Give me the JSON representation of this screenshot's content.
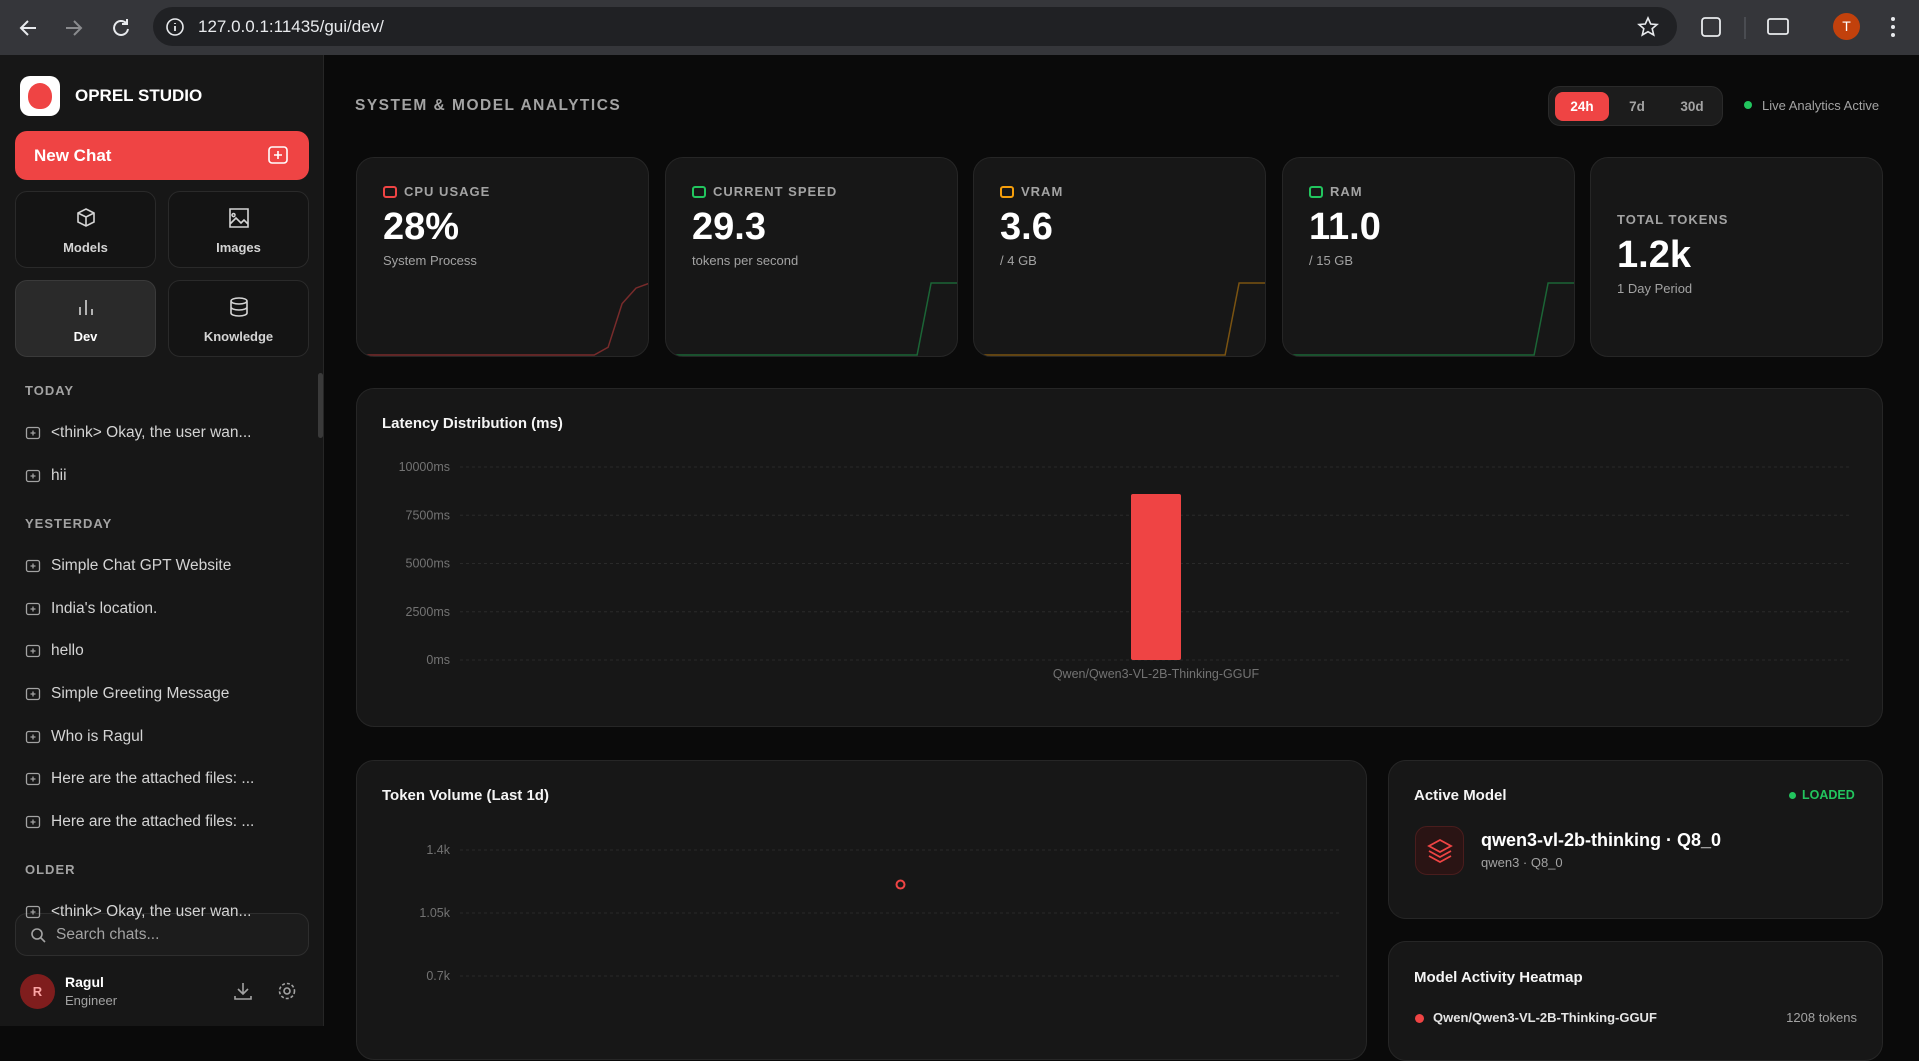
{
  "browser": {
    "url": "127.0.0.1:11435/gui/dev/",
    "avatar": "T"
  },
  "sidebar": {
    "brand": "OPREL STUDIO",
    "new_chat": "New Chat",
    "nav": [
      {
        "label": "Models"
      },
      {
        "label": "Images"
      },
      {
        "label": "Dev"
      },
      {
        "label": "Knowledge"
      }
    ],
    "active_nav": 2,
    "sections": [
      {
        "title": "TODAY",
        "chats": [
          "<think> Okay, the user wan...",
          "hii"
        ]
      },
      {
        "title": "YESTERDAY",
        "chats": [
          "Simple Chat GPT Website",
          "India's location.",
          "hello",
          "Simple Greeting Message",
          "Who is Ragul",
          "Here are the attached files: ...",
          "Here are the attached files: ..."
        ]
      },
      {
        "title": "OLDER",
        "chats": [
          "<think> Okay, the user wan..."
        ]
      }
    ],
    "search_placeholder": "Search chats...",
    "user": {
      "initial": "R",
      "name": "Ragul",
      "role": "Engineer"
    }
  },
  "header": {
    "title": "SYSTEM & MODEL ANALYTICS",
    "ranges": [
      "24h",
      "7d",
      "30d"
    ],
    "active_range": 0,
    "status": "Live Analytics Active"
  },
  "stats": [
    {
      "label": "CPU USAGE",
      "value": "28%",
      "sub": "System Process",
      "color": "#ef4444",
      "trend": [
        0,
        0,
        0,
        0,
        0,
        0,
        0,
        0,
        0,
        0,
        0,
        0,
        0,
        0,
        0,
        0,
        0,
        0,
        3,
        20,
        26,
        28
      ]
    },
    {
      "label": "CURRENT SPEED",
      "value": "29.3",
      "sub": "tokens per second",
      "color": "#22c55e",
      "trend": [
        0,
        0,
        0,
        0,
        0,
        0,
        0,
        0,
        0,
        0,
        0,
        0,
        0,
        0,
        0,
        0,
        0,
        0,
        0,
        29.3,
        29.3,
        29.3
      ]
    },
    {
      "label": "VRAM",
      "value": "3.6",
      "sub": "/ 4 GB",
      "color": "#f59e0b",
      "trend": [
        0,
        0,
        0,
        0,
        0,
        0,
        0,
        0,
        0,
        0,
        0,
        0,
        0,
        0,
        0,
        0,
        0,
        0,
        0,
        3.6,
        3.6,
        3.6
      ]
    },
    {
      "label": "RAM",
      "value": "11.0",
      "sub": "/ 15 GB",
      "color": "#22c55e",
      "trend": [
        0,
        0,
        0,
        0,
        0,
        0,
        0,
        0,
        0,
        0,
        0,
        0,
        0,
        0,
        0,
        0,
        0,
        0,
        0,
        11,
        11,
        11
      ]
    },
    {
      "label": "TOTAL TOKENS",
      "value": "1.2k",
      "sub": "1 Day Period"
    }
  ],
  "chart_data": [
    {
      "type": "bar",
      "title": "Latency Distribution (ms)",
      "categories": [
        "Qwen/Qwen3-VL-2B-Thinking-GGUF"
      ],
      "values": [
        8600
      ],
      "color": "#ef4444",
      "ylim": [
        0,
        10000
      ],
      "yticks": [
        {
          "value": 0,
          "label": "0ms"
        },
        {
          "value": 2500,
          "label": "2500ms"
        },
        {
          "value": 5000,
          "label": "5000ms"
        },
        {
          "value": 7500,
          "label": "7500ms"
        },
        {
          "value": 10000,
          "label": "10000ms"
        }
      ],
      "grid": true
    },
    {
      "type": "line",
      "title": "Token Volume (Last 1d)",
      "categories": [
        null
      ],
      "values": [
        1208
      ],
      "color": "#ef4444",
      "ylim": [
        0,
        1400
      ],
      "yticks": [
        {
          "value": 700,
          "label": "0.7k"
        },
        {
          "value": 1050,
          "label": "1.05k"
        },
        {
          "value": 1400,
          "label": "1.4k"
        }
      ],
      "grid": true
    }
  ],
  "active_model": {
    "title": "Active Model",
    "status": "LOADED",
    "name": "qwen3-vl-2b-thinking · Q8_0",
    "sub": "qwen3 · Q8_0"
  },
  "heatmap": {
    "title": "Model Activity Heatmap",
    "rows": [
      {
        "model": "Qwen/Qwen3-VL-2B-Thinking-GGUF",
        "tokens": "1208 tokens",
        "color": "#ef4444"
      }
    ]
  }
}
